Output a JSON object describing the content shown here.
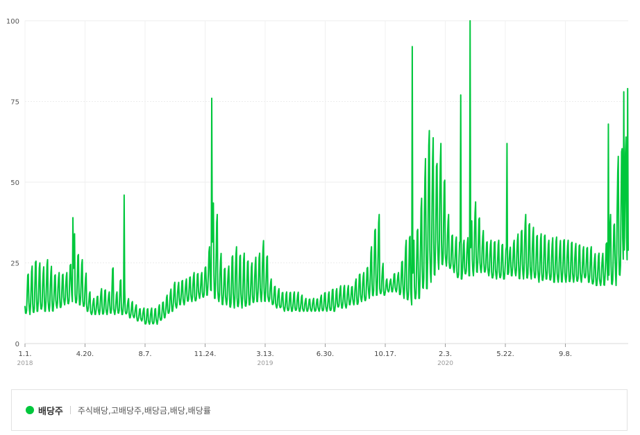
{
  "chart_data": {
    "type": "line",
    "title": "",
    "xlabel": "",
    "ylabel": "",
    "ylim": [
      0,
      100
    ],
    "y_ticks": [
      "0",
      "25",
      "50",
      "75",
      "100"
    ],
    "x_ticks": [
      {
        "label": "1.1.",
        "year": "2018",
        "date": "2018-01-01"
      },
      {
        "label": "4.20.",
        "year": "",
        "date": "2018-04-20"
      },
      {
        "label": "8.7.",
        "year": "",
        "date": "2018-08-07"
      },
      {
        "label": "11.24.",
        "year": "",
        "date": "2018-11-24"
      },
      {
        "label": "3.13.",
        "year": "2019",
        "date": "2019-03-13"
      },
      {
        "label": "6.30.",
        "year": "",
        "date": "2019-06-30"
      },
      {
        "label": "10.17.",
        "year": "",
        "date": "2019-10-17"
      },
      {
        "label": "2.3.",
        "year": "2020",
        "date": "2020-02-03"
      },
      {
        "label": "5.22.",
        "year": "",
        "date": "2020-05-22"
      },
      {
        "label": "9.8.",
        "year": "",
        "date": "2020-09-08"
      }
    ],
    "grid": true,
    "x_start": "2018-01-01",
    "x_end": "2020-12-31",
    "series": [
      {
        "name": "배당주",
        "color": "#00c73c",
        "x_unit": "week",
        "weekly_low": [
          9,
          9,
          9,
          10,
          10,
          10,
          10,
          10,
          11,
          11,
          12,
          12,
          13,
          12,
          12,
          11,
          10,
          9,
          9,
          9,
          9,
          9,
          9,
          9,
          9,
          9,
          9,
          8,
          8,
          7,
          7,
          6,
          6,
          6,
          6,
          7,
          8,
          9,
          10,
          11,
          12,
          12,
          13,
          13,
          13,
          14,
          14,
          15,
          15,
          14,
          13,
          12,
          12,
          11,
          11,
          11,
          11,
          11,
          12,
          12,
          13,
          13,
          13,
          13,
          12,
          11,
          11,
          10,
          10,
          10,
          10,
          10,
          10,
          10,
          10,
          10,
          10,
          10,
          10,
          10,
          10,
          11,
          11,
          11,
          12,
          12,
          12,
          13,
          13,
          14,
          14,
          15,
          15,
          15,
          16,
          16,
          16,
          15,
          14,
          13,
          12,
          13,
          14,
          15,
          17,
          19,
          21,
          23,
          24,
          24,
          23,
          22,
          20,
          20,
          21,
          21,
          21,
          22,
          22,
          22,
          21,
          20,
          20,
          20,
          20,
          21,
          21,
          21,
          20,
          20,
          20,
          20,
          20,
          19,
          19,
          20,
          19,
          19,
          19,
          19,
          19,
          19,
          19,
          19,
          19,
          20,
          19,
          18,
          18,
          18,
          18,
          18,
          18,
          18,
          20,
          22,
          24,
          27,
          30,
          30,
          28
        ],
        "weekly_high": [
          22,
          24,
          26,
          25,
          24,
          26,
          24,
          22,
          22,
          22,
          22,
          25,
          34,
          28,
          26,
          22,
          16,
          14,
          15,
          17,
          17,
          16,
          24,
          16,
          20,
          17,
          14,
          13,
          12,
          11,
          11,
          11,
          11,
          11,
          12,
          13,
          15,
          17,
          19,
          19,
          20,
          20,
          21,
          22,
          22,
          22,
          24,
          30,
          44,
          40,
          28,
          24,
          24,
          28,
          30,
          28,
          28,
          26,
          25,
          27,
          28,
          32,
          28,
          20,
          18,
          17,
          16,
          16,
          16,
          16,
          16,
          15,
          14,
          14,
          14,
          14,
          15,
          16,
          16,
          17,
          17,
          18,
          18,
          18,
          18,
          20,
          22,
          22,
          24,
          30,
          36,
          40,
          25,
          20,
          20,
          22,
          22,
          26,
          32,
          34,
          32,
          36,
          45,
          58,
          66,
          64,
          58,
          62,
          52,
          40,
          34,
          33,
          32,
          32,
          33,
          38,
          44,
          40,
          35,
          32,
          32,
          32,
          32,
          31,
          30,
          30,
          32,
          34,
          36,
          40,
          38,
          36,
          34,
          34,
          34,
          32,
          33,
          33,
          32,
          33,
          32,
          32,
          31,
          31,
          30,
          30,
          30,
          28,
          28,
          28,
          32,
          40,
          38,
          58,
          62,
          64,
          68,
          70,
          72,
          66,
          74
        ],
        "spikes": [
          {
            "date": "2018-03-29",
            "value": 39
          },
          {
            "date": "2018-06-30",
            "value": 46
          },
          {
            "date": "2018-12-06",
            "value": 76
          },
          {
            "date": "2019-12-05",
            "value": 92
          },
          {
            "date": "2020-03-02",
            "value": 77
          },
          {
            "date": "2020-03-19",
            "value": 100
          },
          {
            "date": "2020-05-25",
            "value": 62
          },
          {
            "date": "2020-11-25",
            "value": 68
          },
          {
            "date": "2020-12-23",
            "value": 78
          },
          {
            "date": "2020-12-30",
            "value": 79
          }
        ]
      }
    ]
  },
  "legend": {
    "series_name": "배당주",
    "series_color": "#00c73c",
    "keywords": "주식배당,고배당주,배당금,배당,배당률"
  }
}
